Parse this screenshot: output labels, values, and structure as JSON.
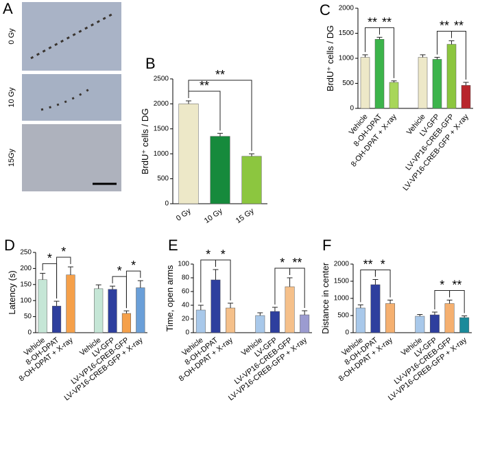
{
  "chart_data": [
    {
      "type": "image",
      "panel": "A",
      "labels": [
        "0 Gy",
        "10 Gy",
        "15Gy"
      ]
    },
    {
      "type": "bar",
      "panel": "B",
      "ylabel": "BrdU⁺ cells / DG",
      "categories": [
        "0 Gy",
        "10 Gy",
        "15 Gy"
      ],
      "values": [
        2000,
        1350,
        950
      ],
      "errors": [
        60,
        60,
        50
      ],
      "colors": [
        "#ede8c8",
        "#168a3c",
        "#8cc63f"
      ],
      "ylim": [
        0,
        2500
      ],
      "yticks": [
        0,
        500,
        1000,
        1500,
        2000,
        2500
      ],
      "annotations": [
        {
          "text": "**",
          "from": 0,
          "to": 1
        },
        {
          "text": "**",
          "from": 0,
          "to": 2
        }
      ]
    },
    {
      "type": "bar",
      "panel": "C",
      "ylabel": "BrdU⁺ cells / DG",
      "categories": [
        "Vehicle",
        "8-OH-DPAT",
        "8-OH-DPAT + X-ray",
        null,
        "Vehicle",
        "LV-GFP",
        "LV-VP16-CREB-GFP",
        "LV-VP16-CREB-GFP + X-ray"
      ],
      "values": [
        1020,
        1380,
        520,
        null,
        1020,
        980,
        1280,
        460
      ],
      "errors": [
        50,
        40,
        30,
        null,
        50,
        40,
        70,
        60
      ],
      "colors": [
        "#ede8c8",
        "#3cb44b",
        "#a8d65a",
        null,
        "#ede8c8",
        "#3cb44b",
        "#8cc63f",
        "#b8262c"
      ],
      "ylim": [
        0,
        2000
      ],
      "yticks": [
        0,
        500,
        1000,
        1500,
        2000
      ],
      "annotations": [
        {
          "text": "**",
          "from": 0,
          "to": 1
        },
        {
          "text": "**",
          "from": 1,
          "to": 2
        },
        {
          "text": "**",
          "from": 5,
          "to": 6
        },
        {
          "text": "**",
          "from": 6,
          "to": 7
        }
      ]
    },
    {
      "type": "bar",
      "panel": "D",
      "ylabel": "Latency (s)",
      "categories": [
        "Vehicle",
        "8-OH-DPAT",
        "8-OH-DPAT + X-ray",
        null,
        "Vehicle",
        "LV-GFP",
        "LV-VP16-CREB-GFP",
        "LV-VP16-CREB-GFP + X-ray"
      ],
      "values": [
        165,
        83,
        180,
        null,
        137,
        135,
        60,
        140
      ],
      "errors": [
        20,
        15,
        25,
        null,
        12,
        10,
        8,
        22
      ],
      "colors": [
        "#c5e6d6",
        "#2e3f9e",
        "#f5a04a",
        null,
        "#c5e6d6",
        "#2e3f9e",
        "#f5a04a",
        "#6a9fd8"
      ],
      "ylim": [
        0,
        250
      ],
      "yticks": [
        0,
        50,
        100,
        150,
        200,
        250
      ],
      "annotations": [
        {
          "text": "*",
          "from": 0,
          "to": 1
        },
        {
          "text": "*",
          "from": 1,
          "to": 2
        },
        {
          "text": "*",
          "from": 5,
          "to": 6
        },
        {
          "text": "*",
          "from": 6,
          "to": 7
        }
      ]
    },
    {
      "type": "bar",
      "panel": "E",
      "ylabel": "Time, open arms",
      "categories": [
        "Vehicle",
        "8-OH-DPAT",
        "8-OH-DPAT + X-ray",
        null,
        "Vehicle",
        "LV-GFP",
        "LV-VP16-CREB-GFP",
        "LV-VP16-CREB-GFP + X-ray"
      ],
      "values": [
        33,
        77,
        36,
        null,
        25,
        31,
        67,
        26
      ],
      "errors": [
        7,
        15,
        7,
        null,
        4,
        6,
        13,
        6
      ],
      "colors": [
        "#a8c8ea",
        "#2e3f9e",
        "#f5c08a",
        null,
        "#a8c8ea",
        "#2e3f9e",
        "#f5c08a",
        "#9b9bd0"
      ],
      "ylim": [
        0,
        100
      ],
      "yticks": [
        0,
        20,
        40,
        60,
        80,
        100
      ],
      "annotations": [
        {
          "text": "*",
          "from": 0,
          "to": 1
        },
        {
          "text": "*",
          "from": 1,
          "to": 2
        },
        {
          "text": "*",
          "from": 5,
          "to": 6
        },
        {
          "text": "**",
          "from": 6,
          "to": 7
        }
      ]
    },
    {
      "type": "bar",
      "panel": "F",
      "ylabel": "Distance in center",
      "categories": [
        "Vehicle",
        "8-OH-DPAT",
        "8-OH-DPAT + X-ray",
        null,
        "Vehicle",
        "LV-GFP",
        "LV-VP16-CREB-GFP",
        "LV-VP16-CREB-GFP + X-ray"
      ],
      "values": [
        720,
        1400,
        850,
        null,
        480,
        520,
        850,
        440
      ],
      "errors": [
        90,
        150,
        100,
        null,
        50,
        80,
        100,
        50
      ],
      "colors": [
        "#a8c8ea",
        "#2e3f9e",
        "#f5b070",
        null,
        "#a8c8ea",
        "#2e3f9e",
        "#f5b070",
        "#1a8a9a"
      ],
      "ylim": [
        0,
        2000
      ],
      "yticks": [
        0,
        500,
        1000,
        1500,
        2000
      ],
      "annotations": [
        {
          "text": "**",
          "from": 0,
          "to": 1
        },
        {
          "text": "*",
          "from": 1,
          "to": 2
        },
        {
          "text": "*",
          "from": 5,
          "to": 6
        },
        {
          "text": "**",
          "from": 6,
          "to": 7
        }
      ]
    }
  ]
}
